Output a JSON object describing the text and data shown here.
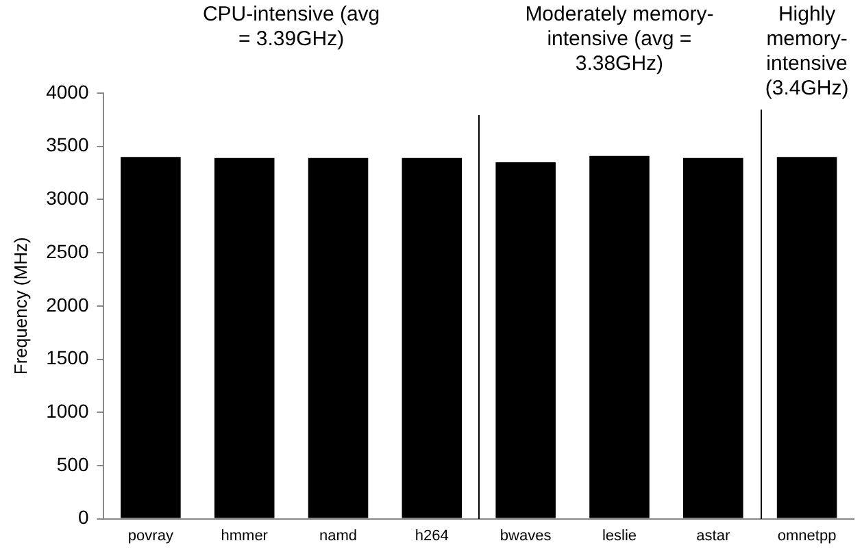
{
  "chart_data": {
    "type": "bar",
    "ylabel": "Frequency (MHz)",
    "categories": [
      "povray",
      "hmmer",
      "namd",
      "h264",
      "bwaves",
      "leslie",
      "astar",
      "omnetpp"
    ],
    "values": [
      3400,
      3390,
      3390,
      3390,
      3350,
      3410,
      3390,
      3400
    ],
    "color": "#000000",
    "ylim": [
      0,
      4000
    ],
    "yticks": [
      0,
      500,
      1000,
      1500,
      2000,
      2500,
      3000,
      3500,
      4000
    ],
    "grid": false,
    "legend": false,
    "annotations": [
      "CPU-intensive (avg = 3.39GHz)",
      "Moderately memory-intensive (avg = 3.38GHz)",
      "Highly memory-intensive (3.4GHz)"
    ]
  }
}
